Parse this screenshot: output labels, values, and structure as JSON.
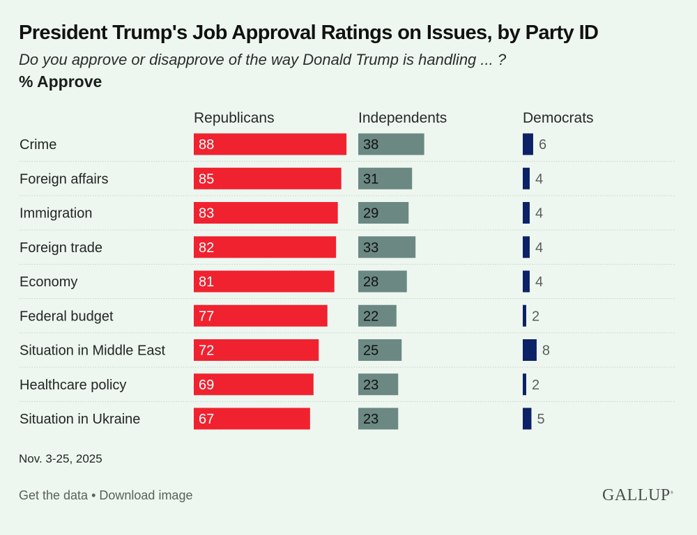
{
  "header": {
    "title": "President Trump's Job Approval Ratings on Issues, by Party ID",
    "subtitle": "Do you approve or disapprove of the way Donald Trump is handling ... ?",
    "measure": "% Approve"
  },
  "colors": {
    "republicans": "#f0222f",
    "independents": "#6b8883",
    "democrats": "#0c2266",
    "rep_label": "#ffffff",
    "ind_label": "#111111",
    "dem_label": "#5a5e5b",
    "gridline": "#c8d0ca"
  },
  "chart_data": {
    "type": "bar",
    "orientation": "horizontal",
    "title": "President Trump's Job Approval Ratings on Issues, by Party ID",
    "subtitle": "Do you approve or disapprove of the way Donald Trump is handling ... ?",
    "ylabel": "% Approve",
    "xlim": [
      0,
      100
    ],
    "grid": "dotted row separators",
    "categories": [
      "Crime",
      "Foreign affairs",
      "Immigration",
      "Foreign trade",
      "Economy",
      "Federal budget",
      "Situation in Middle East",
      "Healthcare policy",
      "Situation in Ukraine"
    ],
    "series": [
      {
        "name": "Republicans",
        "values": [
          88,
          85,
          83,
          82,
          81,
          77,
          72,
          69,
          67
        ]
      },
      {
        "name": "Independents",
        "values": [
          38,
          31,
          29,
          33,
          28,
          22,
          25,
          23,
          23
        ]
      },
      {
        "name": "Democrats",
        "values": [
          6,
          4,
          4,
          4,
          4,
          2,
          8,
          2,
          5
        ]
      }
    ]
  },
  "footer": {
    "date": "Nov. 3-25, 2025",
    "get_data": "Get the data",
    "separator": " • ",
    "download": "Download image",
    "logo": "GALLUP",
    "logo_mark": "®"
  }
}
